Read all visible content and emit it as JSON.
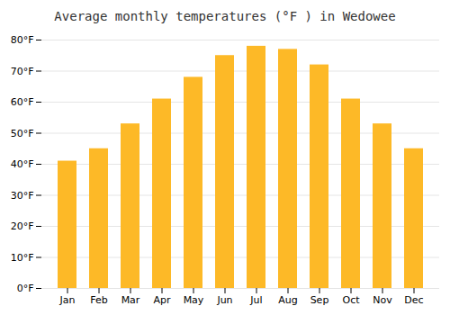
{
  "chart_data": {
    "type": "bar",
    "title": "Average monthly temperatures (°F ) in Wedowee",
    "categories": [
      "Jan",
      "Feb",
      "Mar",
      "Apr",
      "May",
      "Jun",
      "Jul",
      "Aug",
      "Sep",
      "Oct",
      "Nov",
      "Dec"
    ],
    "values": [
      41,
      45,
      53,
      61,
      68,
      75,
      78,
      77,
      72,
      61,
      53,
      45
    ],
    "color": "#FDB927",
    "ylim": [
      0,
      80
    ],
    "yticks": [
      {
        "value": 0,
        "label": "0°F"
      },
      {
        "value": 10,
        "label": "10°F"
      },
      {
        "value": 20,
        "label": "20°F"
      },
      {
        "value": 30,
        "label": "30°F"
      },
      {
        "value": 40,
        "label": "40°F"
      },
      {
        "value": 50,
        "label": "50°F"
      },
      {
        "value": 60,
        "label": "60°F"
      },
      {
        "value": 70,
        "label": "70°F"
      },
      {
        "value": 80,
        "label": "80°F"
      }
    ],
    "grid": true
  }
}
